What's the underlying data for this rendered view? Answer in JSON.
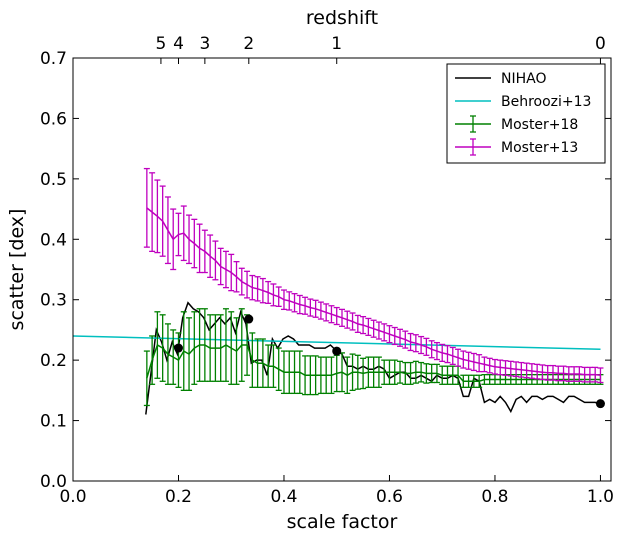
{
  "chart_data": {
    "type": "line",
    "xlabel": "scale factor",
    "ylabel": "scatter [dex]",
    "top_axis_label": "redshift",
    "xlim": [
      0.0,
      1.02
    ],
    "ylim": [
      0.0,
      0.7
    ],
    "grid": false,
    "legend_position": "top-right",
    "x_ticks": [
      {
        "value": 0.0,
        "label": "0.0"
      },
      {
        "value": 0.2,
        "label": "0.2"
      },
      {
        "value": 0.4,
        "label": "0.4"
      },
      {
        "value": 0.6,
        "label": "0.6"
      },
      {
        "value": 0.8,
        "label": "0.8"
      },
      {
        "value": 1.0,
        "label": "1.0"
      }
    ],
    "y_ticks": [
      {
        "value": 0.0,
        "label": "0.0"
      },
      {
        "value": 0.1,
        "label": "0.1"
      },
      {
        "value": 0.2,
        "label": "0.2"
      },
      {
        "value": 0.3,
        "label": "0.3"
      },
      {
        "value": 0.4,
        "label": "0.4"
      },
      {
        "value": 0.5,
        "label": "0.5"
      },
      {
        "value": 0.6,
        "label": "0.6"
      },
      {
        "value": 0.7,
        "label": "0.7"
      }
    ],
    "top_ticks": [
      {
        "value": 0.1667,
        "label": "5"
      },
      {
        "value": 0.2,
        "label": "4"
      },
      {
        "value": 0.25,
        "label": "3"
      },
      {
        "value": 0.3333,
        "label": "2"
      },
      {
        "value": 0.5,
        "label": "1"
      },
      {
        "value": 1.0,
        "label": "0"
      }
    ],
    "series": [
      {
        "name": "NIHAO",
        "kind": "line",
        "color": "#000000",
        "x": [
          0.138,
          0.148,
          0.158,
          0.168,
          0.178,
          0.188,
          0.198,
          0.208,
          0.218,
          0.228,
          0.238,
          0.248,
          0.258,
          0.268,
          0.278,
          0.288,
          0.298,
          0.308,
          0.318,
          0.328,
          0.338,
          0.348,
          0.358,
          0.368,
          0.378,
          0.388,
          0.398,
          0.408,
          0.418,
          0.428,
          0.438,
          0.448,
          0.458,
          0.468,
          0.478,
          0.488,
          0.5,
          0.51,
          0.52,
          0.53,
          0.54,
          0.55,
          0.56,
          0.57,
          0.58,
          0.59,
          0.6,
          0.61,
          0.62,
          0.63,
          0.64,
          0.65,
          0.66,
          0.67,
          0.68,
          0.69,
          0.7,
          0.71,
          0.72,
          0.73,
          0.74,
          0.75,
          0.76,
          0.77,
          0.78,
          0.79,
          0.8,
          0.81,
          0.82,
          0.83,
          0.84,
          0.85,
          0.86,
          0.87,
          0.88,
          0.89,
          0.9,
          0.91,
          0.92,
          0.93,
          0.94,
          0.95,
          0.96,
          0.97,
          0.98,
          0.99,
          1.0
        ],
        "y": [
          0.11,
          0.18,
          0.25,
          0.23,
          0.2,
          0.23,
          0.21,
          0.27,
          0.295,
          0.285,
          0.28,
          0.27,
          0.25,
          0.26,
          0.27,
          0.26,
          0.27,
          0.245,
          0.28,
          0.26,
          0.195,
          0.2,
          0.2,
          0.175,
          0.235,
          0.22,
          0.235,
          0.24,
          0.235,
          0.225,
          0.225,
          0.225,
          0.22,
          0.22,
          0.22,
          0.225,
          0.215,
          0.21,
          0.19,
          0.19,
          0.185,
          0.19,
          0.185,
          0.185,
          0.19,
          0.185,
          0.17,
          0.175,
          0.18,
          0.18,
          0.17,
          0.17,
          0.175,
          0.17,
          0.165,
          0.175,
          0.17,
          0.17,
          0.175,
          0.17,
          0.14,
          0.14,
          0.17,
          0.165,
          0.13,
          0.135,
          0.13,
          0.14,
          0.13,
          0.115,
          0.135,
          0.14,
          0.13,
          0.14,
          0.14,
          0.135,
          0.14,
          0.14,
          0.135,
          0.13,
          0.14,
          0.14,
          0.135,
          0.13,
          0.13,
          0.13,
          0.127
        ]
      },
      {
        "name": "Behroozi+13",
        "kind": "line",
        "color": "#00bfbf",
        "x": [
          0.0,
          1.0
        ],
        "y": [
          0.24,
          0.218
        ]
      },
      {
        "name": "Moster+18",
        "kind": "errorbar",
        "color": "#008000",
        "x": [
          0.14,
          0.15,
          0.16,
          0.17,
          0.18,
          0.19,
          0.2,
          0.21,
          0.22,
          0.23,
          0.24,
          0.25,
          0.26,
          0.27,
          0.28,
          0.29,
          0.3,
          0.31,
          0.32,
          0.33,
          0.34,
          0.35,
          0.36,
          0.37,
          0.38,
          0.39,
          0.4,
          0.41,
          0.42,
          0.43,
          0.44,
          0.45,
          0.46,
          0.47,
          0.48,
          0.49,
          0.5,
          0.51,
          0.52,
          0.53,
          0.54,
          0.55,
          0.56,
          0.57,
          0.58,
          0.59,
          0.6,
          0.61,
          0.62,
          0.63,
          0.64,
          0.65,
          0.66,
          0.67,
          0.68,
          0.69,
          0.7,
          0.71,
          0.72,
          0.73,
          0.74,
          0.75,
          0.76,
          0.77,
          0.78,
          0.79,
          0.8,
          0.81,
          0.82,
          0.83,
          0.84,
          0.85,
          0.86,
          0.87,
          0.88,
          0.89,
          0.9,
          0.91,
          0.92,
          0.93,
          0.94,
          0.95,
          0.96,
          0.97,
          0.98,
          0.99,
          1.0
        ],
        "y": [
          0.17,
          0.2,
          0.225,
          0.22,
          0.21,
          0.205,
          0.2,
          0.215,
          0.21,
          0.22,
          0.225,
          0.225,
          0.22,
          0.22,
          0.22,
          0.225,
          0.22,
          0.215,
          0.225,
          0.225,
          0.2,
          0.195,
          0.195,
          0.19,
          0.19,
          0.185,
          0.18,
          0.18,
          0.18,
          0.18,
          0.175,
          0.175,
          0.175,
          0.175,
          0.175,
          0.175,
          0.178,
          0.18,
          0.175,
          0.18,
          0.18,
          0.178,
          0.18,
          0.18,
          0.18,
          0.18,
          0.18,
          0.18,
          0.18,
          0.178,
          0.178,
          0.18,
          0.18,
          0.178,
          0.178,
          0.178,
          0.175,
          0.175,
          0.175,
          0.175,
          0.165,
          0.165,
          0.165,
          0.165,
          0.168,
          0.168,
          0.168,
          0.168,
          0.168,
          0.168,
          0.168,
          0.168,
          0.168,
          0.168,
          0.168,
          0.168,
          0.168,
          0.168,
          0.168,
          0.168,
          0.168,
          0.168,
          0.168,
          0.168,
          0.168,
          0.168,
          0.168
        ],
        "err": [
          0.045,
          0.04,
          0.055,
          0.055,
          0.05,
          0.045,
          0.045,
          0.065,
          0.06,
          0.06,
          0.06,
          0.06,
          0.055,
          0.055,
          0.055,
          0.06,
          0.06,
          0.055,
          0.06,
          0.05,
          0.045,
          0.04,
          0.04,
          0.035,
          0.035,
          0.035,
          0.035,
          0.035,
          0.035,
          0.035,
          0.032,
          0.032,
          0.032,
          0.03,
          0.03,
          0.03,
          0.03,
          0.032,
          0.03,
          0.03,
          0.028,
          0.025,
          0.025,
          0.025,
          0.025,
          0.02,
          0.02,
          0.02,
          0.018,
          0.018,
          0.018,
          0.018,
          0.016,
          0.016,
          0.015,
          0.015,
          0.015,
          0.015,
          0.015,
          0.015,
          0.01,
          0.01,
          0.01,
          0.01,
          0.008,
          0.008,
          0.008,
          0.008,
          0.008,
          0.008,
          0.008,
          0.008,
          0.008,
          0.008,
          0.008,
          0.008,
          0.008,
          0.008,
          0.008,
          0.008,
          0.008,
          0.008,
          0.008,
          0.008,
          0.008,
          0.008,
          0.008
        ]
      },
      {
        "name": "Moster+13",
        "kind": "errorbar",
        "color": "#bf00bf",
        "x": [
          0.14,
          0.15,
          0.16,
          0.17,
          0.18,
          0.19,
          0.2,
          0.21,
          0.22,
          0.23,
          0.24,
          0.25,
          0.26,
          0.27,
          0.28,
          0.29,
          0.3,
          0.31,
          0.32,
          0.33,
          0.34,
          0.35,
          0.36,
          0.37,
          0.38,
          0.39,
          0.4,
          0.41,
          0.42,
          0.43,
          0.44,
          0.45,
          0.46,
          0.47,
          0.48,
          0.49,
          0.5,
          0.51,
          0.52,
          0.53,
          0.54,
          0.55,
          0.56,
          0.57,
          0.58,
          0.59,
          0.6,
          0.61,
          0.62,
          0.63,
          0.64,
          0.65,
          0.66,
          0.67,
          0.68,
          0.69,
          0.7,
          0.71,
          0.72,
          0.73,
          0.74,
          0.75,
          0.76,
          0.77,
          0.78,
          0.79,
          0.8,
          0.81,
          0.82,
          0.83,
          0.84,
          0.85,
          0.86,
          0.87,
          0.88,
          0.89,
          0.9,
          0.91,
          0.92,
          0.93,
          0.94,
          0.95,
          0.96,
          0.97,
          0.98,
          0.99,
          1.0
        ],
        "y": [
          0.452,
          0.445,
          0.438,
          0.43,
          0.415,
          0.4,
          0.408,
          0.41,
          0.4,
          0.393,
          0.385,
          0.38,
          0.372,
          0.365,
          0.355,
          0.35,
          0.345,
          0.338,
          0.33,
          0.325,
          0.32,
          0.318,
          0.315,
          0.312,
          0.308,
          0.305,
          0.3,
          0.298,
          0.295,
          0.292,
          0.29,
          0.287,
          0.285,
          0.282,
          0.279,
          0.276,
          0.273,
          0.27,
          0.267,
          0.264,
          0.26,
          0.258,
          0.255,
          0.252,
          0.249,
          0.246,
          0.243,
          0.24,
          0.237,
          0.234,
          0.23,
          0.228,
          0.225,
          0.222,
          0.218,
          0.215,
          0.212,
          0.21,
          0.207,
          0.204,
          0.201,
          0.199,
          0.197,
          0.195,
          0.193,
          0.191,
          0.189,
          0.188,
          0.187,
          0.186,
          0.185,
          0.184,
          0.183,
          0.182,
          0.181,
          0.18,
          0.179,
          0.179,
          0.178,
          0.178,
          0.177,
          0.177,
          0.177,
          0.176,
          0.176,
          0.176,
          0.175
        ],
        "err": [
          0.065,
          0.065,
          0.06,
          0.058,
          0.055,
          0.05,
          0.035,
          0.045,
          0.04,
          0.04,
          0.04,
          0.035,
          0.035,
          0.032,
          0.03,
          0.03,
          0.03,
          0.025,
          0.022,
          0.022,
          0.02,
          0.02,
          0.02,
          0.018,
          0.018,
          0.016,
          0.016,
          0.015,
          0.015,
          0.015,
          0.014,
          0.014,
          0.014,
          0.014,
          0.014,
          0.014,
          0.014,
          0.014,
          0.014,
          0.014,
          0.014,
          0.014,
          0.014,
          0.014,
          0.014,
          0.014,
          0.014,
          0.014,
          0.014,
          0.014,
          0.014,
          0.014,
          0.014,
          0.014,
          0.014,
          0.014,
          0.014,
          0.014,
          0.014,
          0.014,
          0.014,
          0.014,
          0.014,
          0.014,
          0.012,
          0.012,
          0.012,
          0.012,
          0.012,
          0.012,
          0.012,
          0.012,
          0.012,
          0.012,
          0.012,
          0.012,
          0.012,
          0.012,
          0.012,
          0.012,
          0.012,
          0.012,
          0.012,
          0.012,
          0.012,
          0.012,
          0.012
        ]
      },
      {
        "name": "",
        "kind": "points",
        "color": "#000000",
        "x": [
          0.2,
          0.3333,
          0.5,
          1.0
        ],
        "y": [
          0.22,
          0.268,
          0.215,
          0.128
        ]
      }
    ]
  }
}
